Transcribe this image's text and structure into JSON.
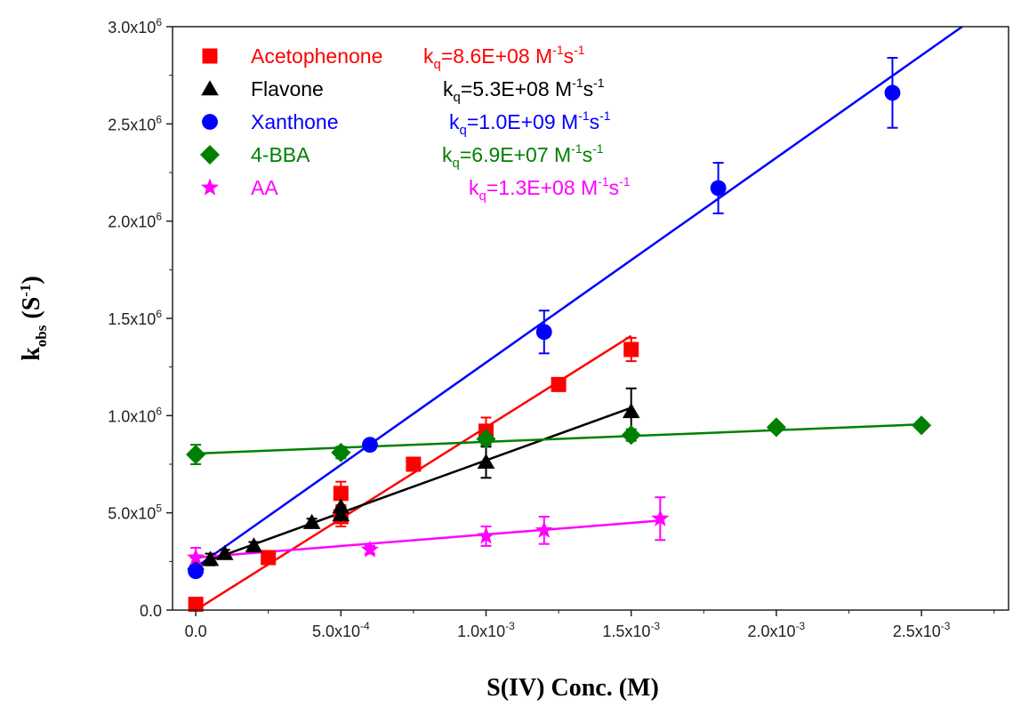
{
  "chart_data": {
    "type": "scatter",
    "xlabel": "S(IV) Conc. (M)",
    "ylabel_main": "k",
    "ylabel_sub": "obs",
    "ylabel_unit_open": " (S",
    "ylabel_unit_sup": "-1",
    "ylabel_unit_close": ")",
    "xlim": [
      -8e-05,
      0.0028
    ],
    "ylim": [
      0,
      3000000
    ],
    "x_ticks": [
      {
        "value": 0,
        "mant": "0.0",
        "exp": ""
      },
      {
        "value": 0.0005,
        "mant": "5.0x10",
        "exp": "-4"
      },
      {
        "value": 0.001,
        "mant": "1.0x10",
        "exp": "-3"
      },
      {
        "value": 0.0015,
        "mant": "1.5x10",
        "exp": "-3"
      },
      {
        "value": 0.002,
        "mant": "2.0x10",
        "exp": "-3"
      },
      {
        "value": 0.0025,
        "mant": "2.5x10",
        "exp": "-3"
      }
    ],
    "y_ticks": [
      {
        "value": 0,
        "mant": "0.0",
        "exp": ""
      },
      {
        "value": 500000,
        "mant": "5.0x10",
        "exp": "5"
      },
      {
        "value": 1000000,
        "mant": "1.0x10",
        "exp": "6"
      },
      {
        "value": 1500000,
        "mant": "1.5x10",
        "exp": "6"
      },
      {
        "value": 2000000,
        "mant": "2.0x10",
        "exp": "6"
      },
      {
        "value": 2500000,
        "mant": "2.5x10",
        "exp": "6"
      },
      {
        "value": 3000000,
        "mant": "3.0x10",
        "exp": "6"
      }
    ],
    "legend_position": "top-left",
    "series": [
      {
        "name": "Acetophenone",
        "color": "#ff0000",
        "marker": "square",
        "kq_text": "=8.6E+08 M",
        "kq_mid": "s",
        "points": [
          {
            "x": 0,
            "y": 30000,
            "err": 0
          },
          {
            "x": 0.00025,
            "y": 270000,
            "err": 20000
          },
          {
            "x": 0.0005,
            "y": 600000,
            "err": 60000
          },
          {
            "x": 0.0005,
            "y": 480000,
            "err": 50000
          },
          {
            "x": 0.00075,
            "y": 750000,
            "err": 20000
          },
          {
            "x": 0.001,
            "y": 920000,
            "err": 70000
          },
          {
            "x": 0.00125,
            "y": 1160000,
            "err": 30000
          },
          {
            "x": 0.0015,
            "y": 1340000,
            "err": 60000
          }
        ],
        "fit": {
          "x0": 0,
          "y0": 0,
          "x1": 0.0015,
          "y1": 1410000
        }
      },
      {
        "name": "Flavone",
        "color": "#000000",
        "marker": "triangle",
        "kq_text": "=5.3E+08 M",
        "kq_mid": "s",
        "points": [
          {
            "x": 0,
            "y": 240000,
            "err": 30000
          },
          {
            "x": 5e-05,
            "y": 260000,
            "err": 30000
          },
          {
            "x": 0.0001,
            "y": 290000,
            "err": 20000
          },
          {
            "x": 0.0002,
            "y": 330000,
            "err": 20000
          },
          {
            "x": 0.0004,
            "y": 450000,
            "err": 20000
          },
          {
            "x": 0.0005,
            "y": 530000,
            "err": 40000
          },
          {
            "x": 0.0005,
            "y": 490000,
            "err": 40000
          },
          {
            "x": 0.001,
            "y": 760000,
            "err": 80000
          },
          {
            "x": 0.0015,
            "y": 1020000,
            "err": 120000
          }
        ],
        "fit": {
          "x0": 0,
          "y0": 230000,
          "x1": 0.0015,
          "y1": 1040000
        }
      },
      {
        "name": "Xanthone",
        "color": "#0000ff",
        "marker": "circle",
        "kq_text": "=1.0E+09 M",
        "kq_mid": "s",
        "points": [
          {
            "x": 0,
            "y": 200000,
            "err": 0
          },
          {
            "x": 0.0006,
            "y": 850000,
            "err": 0
          },
          {
            "x": 0.0012,
            "y": 1430000,
            "err": 110000
          },
          {
            "x": 0.0018,
            "y": 2170000,
            "err": 130000
          },
          {
            "x": 0.0024,
            "y": 2660000,
            "err": 180000
          }
        ],
        "fit": {
          "x0": 0,
          "y0": 220000,
          "x1": 0.00264,
          "y1": 3000000
        }
      },
      {
        "name": "4-BBA",
        "color": "#008000",
        "marker": "diamond",
        "kq_text": "=6.9E+07 M",
        "kq_mid": "s",
        "points": [
          {
            "x": 0,
            "y": 800000,
            "err": 50000
          },
          {
            "x": 0.0005,
            "y": 810000,
            "err": 30000
          },
          {
            "x": 0.001,
            "y": 880000,
            "err": 30000
          },
          {
            "x": 0.0015,
            "y": 900000,
            "err": 30000
          },
          {
            "x": 0.002,
            "y": 940000,
            "err": 20000
          },
          {
            "x": 0.0025,
            "y": 950000,
            "err": 20000
          }
        ],
        "fit": {
          "x0": 0,
          "y0": 805000,
          "x1": 0.0025,
          "y1": 955000
        }
      },
      {
        "name": "AA",
        "color": "#ff00ff",
        "marker": "star",
        "kq_text": "=1.3E+08 M",
        "kq_mid": "s",
        "points": [
          {
            "x": 0,
            "y": 270000,
            "err": 50000
          },
          {
            "x": 0.0006,
            "y": 310000,
            "err": 20000
          },
          {
            "x": 0.001,
            "y": 380000,
            "err": 50000
          },
          {
            "x": 0.0012,
            "y": 410000,
            "err": 70000
          },
          {
            "x": 0.0016,
            "y": 470000,
            "err": 110000
          }
        ],
        "fit": {
          "x0": 0,
          "y0": 270000,
          "x1": 0.0016,
          "y1": 460000
        }
      }
    ]
  }
}
